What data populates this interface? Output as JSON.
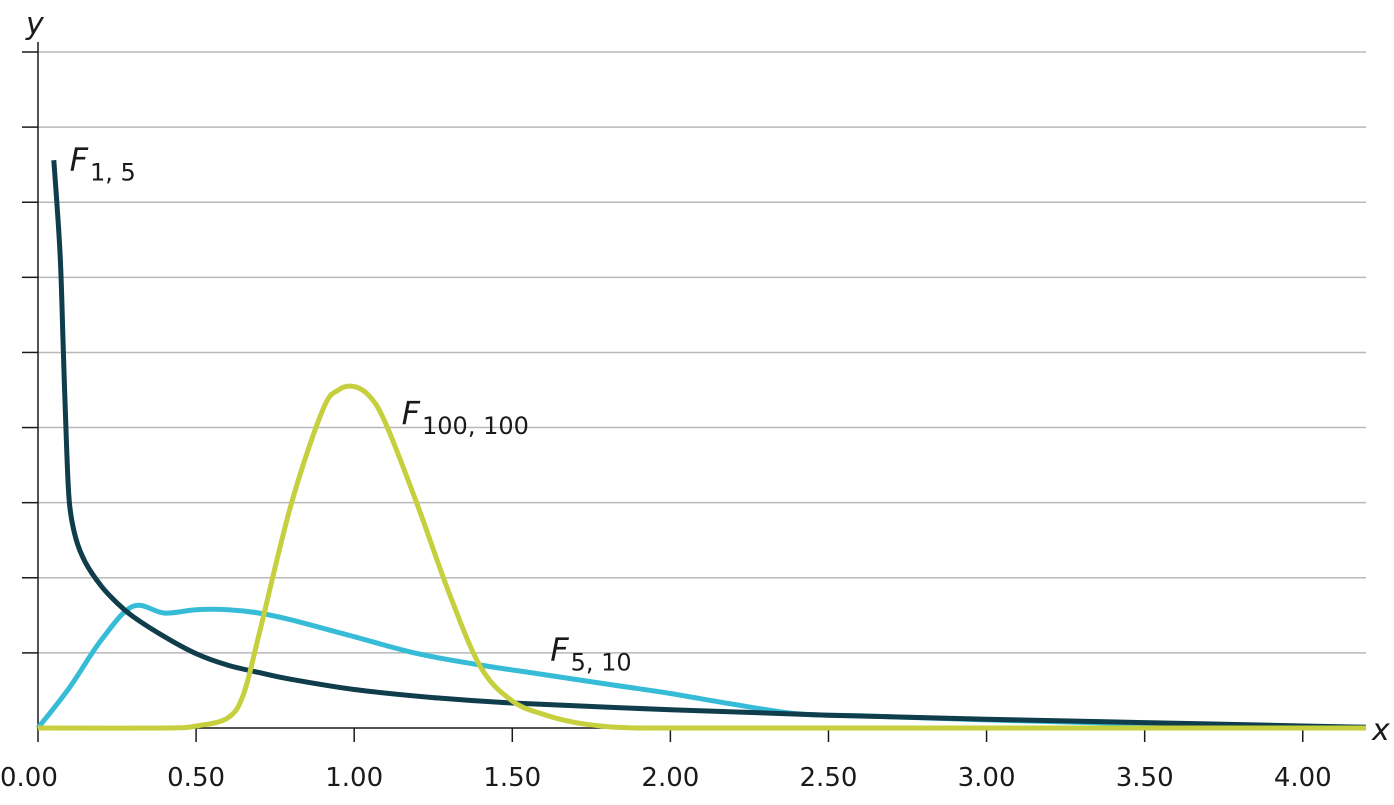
{
  "chart_data": {
    "type": "line",
    "xlabel": "x",
    "ylabel": "y",
    "xlim": [
      0,
      4.2
    ],
    "ylim": [
      0,
      1
    ],
    "x_ticks": [
      0,
      0.5,
      1.0,
      1.5,
      2.0,
      2.5,
      3.0,
      3.5,
      4.0
    ],
    "x_tick_labels": [
      "0.00",
      "0.50",
      "1.00",
      "1.50",
      "2.00",
      "2.50",
      "3.00",
      "3.50",
      "4.00"
    ],
    "y_gridlines": 9,
    "grid": true,
    "series": [
      {
        "name": "F",
        "subscript": "1, 5",
        "color": "#0f3d4c",
        "x": [
          0.05,
          0.07,
          0.08,
          0.09,
          0.1,
          0.12,
          0.15,
          0.2,
          0.25,
          0.3,
          0.4,
          0.5,
          0.6,
          0.7,
          0.8,
          1.0,
          1.25,
          1.5,
          2.0,
          2.5,
          3.0,
          3.5,
          4.0,
          4.2
        ],
        "y": [
          0.84,
          0.7,
          0.56,
          0.42,
          0.33,
          0.28,
          0.245,
          0.21,
          0.185,
          0.165,
          0.135,
          0.11,
          0.093,
          0.082,
          0.072,
          0.057,
          0.045,
          0.037,
          0.027,
          0.019,
          0.013,
          0.008,
          0.003,
          0.001
        ]
      },
      {
        "name": "F",
        "subscript": "5, 10",
        "color": "#36bcd6",
        "x": [
          0.0,
          0.1,
          0.2,
          0.3,
          0.4,
          0.5,
          0.6,
          0.7,
          0.8,
          1.0,
          1.2,
          1.4,
          1.6,
          1.8,
          2.0,
          2.2,
          2.4,
          2.6,
          3.0,
          3.5,
          4.0,
          4.2
        ],
        "y": [
          0.0,
          0.06,
          0.13,
          0.18,
          0.17,
          0.175,
          0.175,
          0.17,
          0.16,
          0.135,
          0.11,
          0.093,
          0.079,
          0.065,
          0.051,
          0.035,
          0.021,
          0.018,
          0.012,
          0.006,
          0.002,
          0.001
        ]
      },
      {
        "name": "F",
        "subscript": "100, 100",
        "color": "#c6cf3d",
        "x": [
          0.0,
          0.4,
          0.5,
          0.6,
          0.65,
          0.7,
          0.8,
          0.9,
          0.95,
          1.0,
          1.05,
          1.1,
          1.2,
          1.3,
          1.4,
          1.5,
          1.6,
          1.7,
          1.8,
          1.9,
          2.0,
          3.0,
          4.2
        ],
        "y": [
          0.0,
          0.0,
          0.003,
          0.015,
          0.05,
          0.14,
          0.33,
          0.47,
          0.5,
          0.505,
          0.49,
          0.45,
          0.33,
          0.2,
          0.09,
          0.04,
          0.02,
          0.008,
          0.002,
          0.0,
          0.0,
          0.0,
          0.0
        ]
      }
    ],
    "annotations": [
      {
        "series": 0,
        "text": "F",
        "sub": "1, 5",
        "at_x": 0.1,
        "at_y": 0.825
      },
      {
        "series": 1,
        "text": "F",
        "sub": "5, 10",
        "at_x": 1.62,
        "at_y": 0.1
      },
      {
        "series": 2,
        "text": "F",
        "sub": "100, 100",
        "at_x": 1.15,
        "at_y": 0.45
      }
    ]
  }
}
